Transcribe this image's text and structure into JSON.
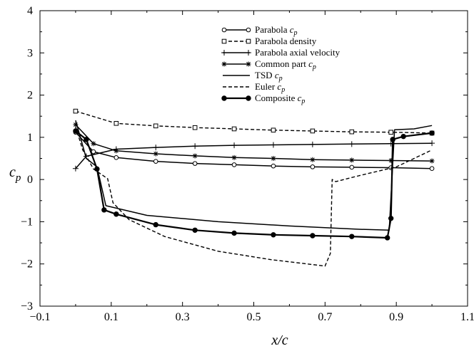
{
  "chart_data": {
    "type": "line",
    "xlabel": "x/c",
    "ylabel": "c_p",
    "xlim": [
      -0.1,
      1.1
    ],
    "ylim": [
      -3,
      4
    ],
    "xticks": [
      -0.1,
      0.1,
      0.3,
      0.5,
      0.7,
      0.9,
      1.1
    ],
    "xtick_labels": [
      "−0.1",
      "0.1",
      "0.3",
      "0.5",
      "0.7",
      "0.9",
      "1.1"
    ],
    "yticks": [
      -3,
      -2,
      -1,
      0,
      1,
      2,
      3,
      4
    ],
    "ytick_labels": [
      "−3",
      "−2",
      "−1",
      "0",
      "1",
      "2",
      "3",
      "4"
    ],
    "legend_position": "top-center",
    "grid": false,
    "series": [
      {
        "name": "Parabola c_p",
        "label_main": "Parabola ",
        "label_sym": "c",
        "label_sub": "p",
        "style": "solid",
        "marker": "open-circle",
        "x": [
          0.0,
          0.05,
          0.114,
          0.225,
          0.335,
          0.445,
          0.555,
          0.665,
          0.775,
          0.885,
          1.0
        ],
        "y": [
          1.12,
          0.66,
          0.52,
          0.43,
          0.38,
          0.35,
          0.32,
          0.3,
          0.29,
          0.28,
          0.26
        ]
      },
      {
        "name": "Parabola density",
        "label_main": "Parabola density",
        "label_sym": "",
        "label_sub": "",
        "style": "dashed",
        "marker": "open-square",
        "x": [
          0.0,
          0.114,
          0.225,
          0.335,
          0.445,
          0.555,
          0.665,
          0.775,
          0.885,
          1.0
        ],
        "y": [
          1.62,
          1.33,
          1.27,
          1.23,
          1.2,
          1.17,
          1.15,
          1.13,
          1.12,
          1.1
        ]
      },
      {
        "name": "Parabola axial velocity",
        "label_main": "Parabola axial velocity",
        "label_sym": "",
        "label_sub": "",
        "style": "solid",
        "marker": "plus",
        "x": [
          0.0,
          0.03,
          0.114,
          0.225,
          0.335,
          0.445,
          0.555,
          0.665,
          0.775,
          0.885,
          1.0
        ],
        "y": [
          0.26,
          0.55,
          0.72,
          0.76,
          0.79,
          0.81,
          0.82,
          0.83,
          0.84,
          0.85,
          0.86
        ]
      },
      {
        "name": "Common part c_p",
        "label_main": "Common part ",
        "label_sym": "c",
        "label_sub": "p",
        "style": "solid",
        "marker": "asterisk",
        "x": [
          0.0,
          0.05,
          0.114,
          0.225,
          0.335,
          0.445,
          0.555,
          0.665,
          0.775,
          0.885,
          1.0
        ],
        "y": [
          1.3,
          0.85,
          0.68,
          0.61,
          0.56,
          0.52,
          0.5,
          0.47,
          0.46,
          0.45,
          0.44
        ]
      },
      {
        "name": "TSD c_p",
        "label_main": "TSD ",
        "label_sym": "c",
        "label_sub": "p",
        "style": "solid",
        "marker": "none",
        "x": [
          0.0,
          0.03,
          0.06,
          0.085,
          0.2,
          0.4,
          0.6,
          0.8,
          0.88,
          0.895,
          0.95,
          1.0
        ],
        "y": [
          1.4,
          0.5,
          0.3,
          -0.62,
          -0.85,
          -1.0,
          -1.1,
          -1.18,
          -1.2,
          1.18,
          1.2,
          1.28
        ]
      },
      {
        "name": "Euler c_p",
        "label_main": "Euler ",
        "label_sym": "c",
        "label_sub": "p",
        "style": "dashed",
        "marker": "none",
        "x": [
          0.0,
          0.02,
          0.05,
          0.09,
          0.105,
          0.15,
          0.25,
          0.4,
          0.55,
          0.65,
          0.7,
          0.715,
          0.72,
          0.73,
          0.8,
          0.9,
          1.0
        ],
        "y": [
          1.25,
          0.7,
          0.25,
          0.02,
          -0.55,
          -0.95,
          -1.35,
          -1.7,
          -1.9,
          -2.0,
          -2.05,
          -1.75,
          0.0,
          -0.05,
          0.1,
          0.3,
          0.7
        ]
      },
      {
        "name": "Composite c_p",
        "label_main": "Composite ",
        "label_sym": "c",
        "label_sub": "p",
        "style": "solid-thick",
        "marker": "filled-circle",
        "x": [
          0.0,
          0.03,
          0.06,
          0.08,
          0.114,
          0.225,
          0.335,
          0.445,
          0.555,
          0.665,
          0.775,
          0.875,
          0.885,
          0.89,
          0.92,
          1.0
        ],
        "y": [
          1.15,
          0.95,
          0.25,
          -0.72,
          -0.82,
          -1.07,
          -1.2,
          -1.27,
          -1.31,
          -1.33,
          -1.35,
          -1.38,
          -0.92,
          0.95,
          1.02,
          1.1
        ]
      }
    ]
  }
}
